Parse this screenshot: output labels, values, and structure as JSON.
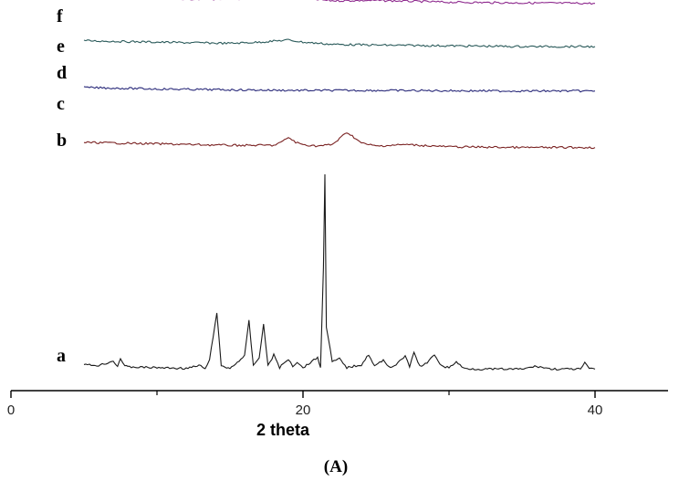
{
  "chart_data": {
    "type": "line",
    "xlabel": "2 theta",
    "ylabel": "",
    "panel_label": "(A)",
    "xlim": [
      0,
      45
    ],
    "x_ticks": [
      0,
      20,
      40
    ],
    "x_minor_ticks": [
      10,
      30
    ],
    "grid": false,
    "legend": "none",
    "series": [
      {
        "name": "f",
        "color": "#8a8a4a",
        "x": [
          5,
          10,
          13,
          15,
          17,
          20,
          25,
          30,
          35,
          40
        ],
        "y": [
          5.1,
          5.15,
          5.08,
          4.85,
          4.7,
          4.6,
          4.58,
          4.57,
          4.57,
          4.58
        ]
      },
      {
        "name": "e",
        "color": "#8e2a8e",
        "x": [
          5,
          10,
          15,
          17,
          19,
          20,
          22,
          25,
          30,
          35,
          40
        ],
        "y": [
          3.95,
          3.85,
          3.8,
          3.9,
          4.05,
          3.85,
          3.7,
          3.72,
          3.6,
          3.55,
          3.52
        ]
      },
      {
        "name": "d",
        "color": "#2a5a5a",
        "x": [
          5,
          10,
          15,
          17,
          19,
          20,
          22,
          25,
          30,
          35,
          40
        ],
        "y": [
          2.9,
          2.8,
          2.72,
          2.8,
          2.95,
          2.8,
          2.65,
          2.6,
          2.55,
          2.5,
          2.5
        ]
      },
      {
        "name": "c",
        "color": "#2a2a7a",
        "x": [
          5,
          10,
          15,
          20,
          25,
          30,
          35,
          40
        ],
        "y": [
          1.82,
          1.72,
          1.66,
          1.62,
          1.62,
          1.6,
          1.58,
          1.58
        ]
      },
      {
        "name": "b",
        "color": "#7a2222",
        "x": [
          5,
          10,
          15,
          18,
          18.6,
          19,
          19.5,
          20,
          21,
          22,
          22.5,
          23,
          23.5,
          24,
          25,
          27,
          30,
          35,
          40
        ],
        "y": [
          0.75,
          0.65,
          0.55,
          0.55,
          0.8,
          1.1,
          0.75,
          0.6,
          0.5,
          0.6,
          1.0,
          1.45,
          1.1,
          0.7,
          0.5,
          0.6,
          0.45,
          0.4,
          0.4
        ]
      },
      {
        "name": "a",
        "color": "#1a1a1a",
        "x": [
          5,
          6,
          7,
          7.3,
          7.5,
          7.8,
          8,
          10,
          12,
          13,
          13.3,
          13.6,
          14.1,
          14.4,
          15,
          16,
          16.3,
          16.6,
          17,
          17.3,
          17.6,
          18,
          18.4,
          19,
          19.3,
          19.6,
          20,
          21,
          21.2,
          21.4,
          21.5,
          21.6,
          22,
          22.5,
          23,
          24,
          24.5,
          24.9,
          25.5,
          26,
          26.5,
          27,
          27.3,
          27.6,
          28,
          28.5,
          29,
          29.5,
          30,
          30.5,
          31,
          32,
          35,
          36,
          37,
          38,
          39,
          39.3,
          39.6,
          40
        ],
        "y": [
          0.4,
          0.35,
          0.65,
          0.3,
          0.85,
          0.3,
          0.25,
          0.2,
          0.15,
          0.35,
          0.1,
          0.7,
          4.0,
          0.3,
          0.15,
          1.0,
          3.4,
          0.3,
          0.9,
          3.2,
          0.3,
          1.1,
          0.2,
          0.8,
          0.3,
          0.6,
          0.2,
          0.9,
          0.2,
          7.0,
          13.5,
          3.0,
          0.6,
          0.8,
          0.2,
          0.4,
          1.1,
          0.3,
          0.7,
          0.2,
          0.5,
          1.0,
          0.3,
          1.2,
          0.3,
          0.5,
          1.1,
          0.3,
          0.2,
          0.6,
          0.15,
          0.1,
          0.1,
          0.3,
          0.1,
          0.1,
          0.1,
          0.5,
          0.15,
          0.1
        ]
      }
    ]
  }
}
